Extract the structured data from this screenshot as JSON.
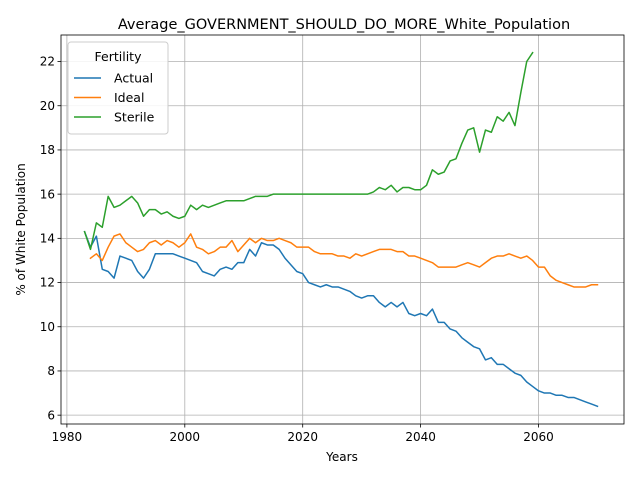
{
  "chart_data": {
    "type": "line",
    "title": "Average_GOVERNMENT_SHOULD_DO_MORE_White_Population",
    "xlabel": "Years",
    "ylabel": "% of White Population",
    "xlim": [
      1979,
      2074.5
    ],
    "ylim": [
      5.6,
      23.2
    ],
    "xticks": [
      1980,
      2000,
      2020,
      2040,
      2060
    ],
    "yticks": [
      6,
      8,
      10,
      12,
      14,
      16,
      18,
      20,
      22
    ],
    "grid": true,
    "legend": {
      "title": "Fertility",
      "placement": "top-left"
    },
    "series": [
      {
        "name": "Actual",
        "color": "#1f77b4",
        "points": [
          [
            1983,
            14.3
          ],
          [
            1984,
            13.6
          ],
          [
            1985,
            14.1
          ],
          [
            1986,
            12.6
          ],
          [
            1987,
            12.5
          ],
          [
            1988,
            12.2
          ],
          [
            1989,
            13.2
          ],
          [
            1990,
            13.1
          ],
          [
            1991,
            13.0
          ],
          [
            1992,
            12.5
          ],
          [
            1993,
            12.2
          ],
          [
            1994,
            12.6
          ],
          [
            1995,
            13.3
          ],
          [
            1996,
            13.3
          ],
          [
            1997,
            13.3
          ],
          [
            1998,
            13.3
          ],
          [
            1999,
            13.2
          ],
          [
            2000,
            13.1
          ],
          [
            2001,
            13.0
          ],
          [
            2002,
            12.9
          ],
          [
            2003,
            12.5
          ],
          [
            2004,
            12.4
          ],
          [
            2005,
            12.3
          ],
          [
            2006,
            12.6
          ],
          [
            2007,
            12.7
          ],
          [
            2008,
            12.6
          ],
          [
            2009,
            12.9
          ],
          [
            2010,
            12.9
          ],
          [
            2011,
            13.5
          ],
          [
            2012,
            13.2
          ],
          [
            2013,
            13.8
          ],
          [
            2014,
            13.7
          ],
          [
            2015,
            13.7
          ],
          [
            2016,
            13.5
          ],
          [
            2017,
            13.1
          ],
          [
            2018,
            12.8
          ],
          [
            2019,
            12.5
          ],
          [
            2020,
            12.4
          ],
          [
            2021,
            12.0
          ],
          [
            2022,
            11.9
          ],
          [
            2023,
            11.8
          ],
          [
            2024,
            11.9
          ],
          [
            2025,
            11.8
          ],
          [
            2026,
            11.8
          ],
          [
            2027,
            11.7
          ],
          [
            2028,
            11.6
          ],
          [
            2029,
            11.4
          ],
          [
            2030,
            11.3
          ],
          [
            2031,
            11.4
          ],
          [
            2032,
            11.4
          ],
          [
            2033,
            11.1
          ],
          [
            2034,
            10.9
          ],
          [
            2035,
            11.1
          ],
          [
            2036,
            10.9
          ],
          [
            2037,
            11.1
          ],
          [
            2038,
            10.6
          ],
          [
            2039,
            10.5
          ],
          [
            2040,
            10.6
          ],
          [
            2041,
            10.5
          ],
          [
            2042,
            10.8
          ],
          [
            2043,
            10.2
          ],
          [
            2044,
            10.2
          ],
          [
            2045,
            9.9
          ],
          [
            2046,
            9.8
          ],
          [
            2047,
            9.5
          ],
          [
            2048,
            9.3
          ],
          [
            2049,
            9.1
          ],
          [
            2050,
            9.0
          ],
          [
            2051,
            8.5
          ],
          [
            2052,
            8.6
          ],
          [
            2053,
            8.3
          ],
          [
            2054,
            8.3
          ],
          [
            2055,
            8.1
          ],
          [
            2056,
            7.9
          ],
          [
            2057,
            7.8
          ],
          [
            2058,
            7.5
          ],
          [
            2059,
            7.3
          ],
          [
            2060,
            7.1
          ],
          [
            2061,
            7.0
          ],
          [
            2062,
            7.0
          ],
          [
            2063,
            6.9
          ],
          [
            2064,
            6.9
          ],
          [
            2065,
            6.8
          ],
          [
            2066,
            6.8
          ],
          [
            2067,
            6.7
          ],
          [
            2068,
            6.6
          ],
          [
            2069,
            6.5
          ],
          [
            2070,
            6.4
          ]
        ]
      },
      {
        "name": "Ideal",
        "color": "#ff7f0e",
        "points": [
          [
            1984,
            13.1
          ],
          [
            1985,
            13.3
          ],
          [
            1986,
            13.0
          ],
          [
            1987,
            13.6
          ],
          [
            1988,
            14.1
          ],
          [
            1989,
            14.2
          ],
          [
            1990,
            13.8
          ],
          [
            1991,
            13.6
          ],
          [
            1992,
            13.4
          ],
          [
            1993,
            13.5
          ],
          [
            1994,
            13.8
          ],
          [
            1995,
            13.9
          ],
          [
            1996,
            13.7
          ],
          [
            1997,
            13.9
          ],
          [
            1998,
            13.8
          ],
          [
            1999,
            13.6
          ],
          [
            2000,
            13.8
          ],
          [
            2001,
            14.2
          ],
          [
            2002,
            13.6
          ],
          [
            2003,
            13.5
          ],
          [
            2004,
            13.3
          ],
          [
            2005,
            13.4
          ],
          [
            2006,
            13.6
          ],
          [
            2007,
            13.6
          ],
          [
            2008,
            13.9
          ],
          [
            2009,
            13.4
          ],
          [
            2010,
            13.7
          ],
          [
            2011,
            14.0
          ],
          [
            2012,
            13.8
          ],
          [
            2013,
            14.0
          ],
          [
            2014,
            13.9
          ],
          [
            2015,
            13.9
          ],
          [
            2016,
            14.0
          ],
          [
            2017,
            13.9
          ],
          [
            2018,
            13.8
          ],
          [
            2019,
            13.6
          ],
          [
            2020,
            13.6
          ],
          [
            2021,
            13.6
          ],
          [
            2022,
            13.4
          ],
          [
            2023,
            13.3
          ],
          [
            2024,
            13.3
          ],
          [
            2025,
            13.3
          ],
          [
            2026,
            13.2
          ],
          [
            2027,
            13.2
          ],
          [
            2028,
            13.1
          ],
          [
            2029,
            13.3
          ],
          [
            2030,
            13.2
          ],
          [
            2031,
            13.3
          ],
          [
            2032,
            13.4
          ],
          [
            2033,
            13.5
          ],
          [
            2034,
            13.5
          ],
          [
            2035,
            13.5
          ],
          [
            2036,
            13.4
          ],
          [
            2037,
            13.4
          ],
          [
            2038,
            13.2
          ],
          [
            2039,
            13.2
          ],
          [
            2040,
            13.1
          ],
          [
            2041,
            13.0
          ],
          [
            2042,
            12.9
          ],
          [
            2043,
            12.7
          ],
          [
            2044,
            12.7
          ],
          [
            2045,
            12.7
          ],
          [
            2046,
            12.7
          ],
          [
            2047,
            12.8
          ],
          [
            2048,
            12.9
          ],
          [
            2049,
            12.8
          ],
          [
            2050,
            12.7
          ],
          [
            2051,
            12.9
          ],
          [
            2052,
            13.1
          ],
          [
            2053,
            13.2
          ],
          [
            2054,
            13.2
          ],
          [
            2055,
            13.3
          ],
          [
            2056,
            13.2
          ],
          [
            2057,
            13.1
          ],
          [
            2058,
            13.2
          ],
          [
            2059,
            13.0
          ],
          [
            2060,
            12.7
          ],
          [
            2061,
            12.7
          ],
          [
            2062,
            12.3
          ],
          [
            2063,
            12.1
          ],
          [
            2064,
            12.0
          ],
          [
            2065,
            11.9
          ],
          [
            2066,
            11.8
          ],
          [
            2067,
            11.8
          ],
          [
            2068,
            11.8
          ],
          [
            2069,
            11.9
          ],
          [
            2070,
            11.9
          ]
        ]
      },
      {
        "name": "Sterile",
        "color": "#2ca02c",
        "points": [
          [
            1983,
            14.3
          ],
          [
            1984,
            13.5
          ],
          [
            1985,
            14.7
          ],
          [
            1986,
            14.5
          ],
          [
            1987,
            15.9
          ],
          [
            1988,
            15.4
          ],
          [
            1989,
            15.5
          ],
          [
            1990,
            15.7
          ],
          [
            1991,
            15.9
          ],
          [
            1992,
            15.6
          ],
          [
            1993,
            15.0
          ],
          [
            1994,
            15.3
          ],
          [
            1995,
            15.3
          ],
          [
            1996,
            15.1
          ],
          [
            1997,
            15.2
          ],
          [
            1998,
            15.0
          ],
          [
            1999,
            14.9
          ],
          [
            2000,
            15.0
          ],
          [
            2001,
            15.5
          ],
          [
            2002,
            15.3
          ],
          [
            2003,
            15.5
          ],
          [
            2004,
            15.4
          ],
          [
            2005,
            15.5
          ],
          [
            2006,
            15.6
          ],
          [
            2007,
            15.7
          ],
          [
            2008,
            15.7
          ],
          [
            2009,
            15.7
          ],
          [
            2010,
            15.7
          ],
          [
            2011,
            15.8
          ],
          [
            2012,
            15.9
          ],
          [
            2013,
            15.9
          ],
          [
            2014,
            15.9
          ],
          [
            2015,
            16.0
          ],
          [
            2016,
            16.0
          ],
          [
            2017,
            16.0
          ],
          [
            2018,
            16.0
          ],
          [
            2019,
            16.0
          ],
          [
            2020,
            16.0
          ],
          [
            2021,
            16.0
          ],
          [
            2022,
            16.0
          ],
          [
            2023,
            16.0
          ],
          [
            2024,
            16.0
          ],
          [
            2025,
            16.0
          ],
          [
            2026,
            16.0
          ],
          [
            2027,
            16.0
          ],
          [
            2028,
            16.0
          ],
          [
            2029,
            16.0
          ],
          [
            2030,
            16.0
          ],
          [
            2031,
            16.0
          ],
          [
            2032,
            16.1
          ],
          [
            2033,
            16.3
          ],
          [
            2034,
            16.2
          ],
          [
            2035,
            16.4
          ],
          [
            2036,
            16.1
          ],
          [
            2037,
            16.3
          ],
          [
            2038,
            16.3
          ],
          [
            2039,
            16.2
          ],
          [
            2040,
            16.2
          ],
          [
            2041,
            16.4
          ],
          [
            2042,
            17.1
          ],
          [
            2043,
            16.9
          ],
          [
            2044,
            17.0
          ],
          [
            2045,
            17.5
          ],
          [
            2046,
            17.6
          ],
          [
            2047,
            18.3
          ],
          [
            2048,
            18.9
          ],
          [
            2049,
            19.0
          ],
          [
            2050,
            17.9
          ],
          [
            2051,
            18.9
          ],
          [
            2052,
            18.8
          ],
          [
            2053,
            19.5
          ],
          [
            2054,
            19.3
          ],
          [
            2055,
            19.7
          ],
          [
            2056,
            19.1
          ],
          [
            2057,
            20.6
          ],
          [
            2058,
            22.0
          ],
          [
            2059,
            22.4
          ]
        ]
      }
    ]
  }
}
